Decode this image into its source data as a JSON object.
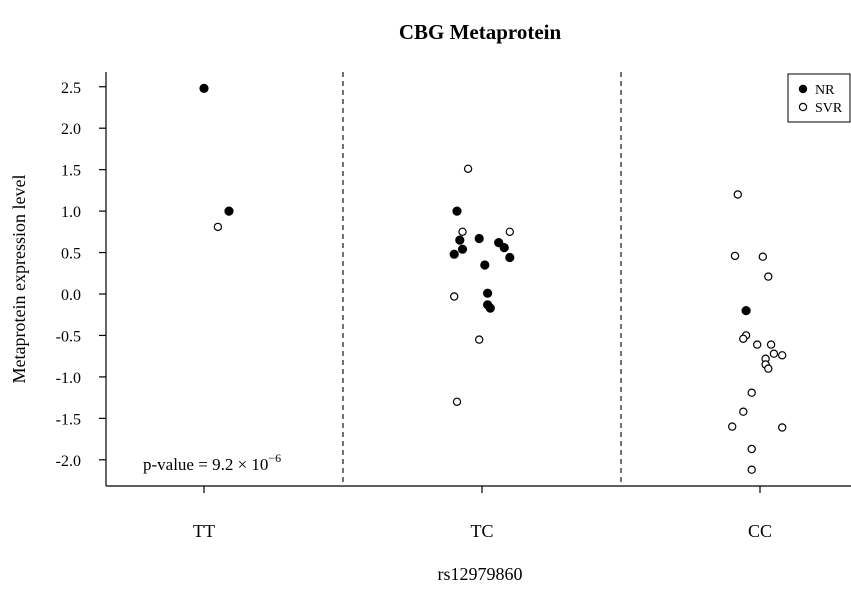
{
  "chart_data": {
    "type": "scatter",
    "title": "CBG Metaprotein",
    "xlabel": "rs12979860",
    "ylabel": "Metaprotein expression level",
    "categories": [
      "TT",
      "TC",
      "CC"
    ],
    "ylim": [
      -2.3,
      2.7
    ],
    "yticks": [
      "2.5",
      "2.0",
      "1.5",
      "1.0",
      "0.5",
      "0.0",
      "-0.5",
      "-1.0",
      "-1.5",
      "-2.0"
    ],
    "yticks_values": [
      2.5,
      2.0,
      1.5,
      1.0,
      0.5,
      0.0,
      -0.5,
      -1.0,
      -1.5,
      -2.0
    ],
    "grid": false,
    "legend_position": "top-right",
    "separators": "dashed vertical lines between groups",
    "annotation": {
      "text": "p-value = 9.2 × 10",
      "exponent": "−6"
    },
    "series": [
      {
        "name": "NR",
        "marker": "filled-circle",
        "points": [
          {
            "x": "TT",
            "jitter": 0.0,
            "y": 2.48
          },
          {
            "x": "TT",
            "jitter": 0.09,
            "y": 1.0
          },
          {
            "x": "TC",
            "jitter": -0.09,
            "y": 1.0
          },
          {
            "x": "TC",
            "jitter": -0.08,
            "y": 0.65
          },
          {
            "x": "TC",
            "jitter": -0.07,
            "y": 0.54
          },
          {
            "x": "TC",
            "jitter": -0.1,
            "y": 0.48
          },
          {
            "x": "TC",
            "jitter": -0.01,
            "y": 0.67
          },
          {
            "x": "TC",
            "jitter": 0.06,
            "y": 0.62
          },
          {
            "x": "TC",
            "jitter": 0.08,
            "y": 0.56
          },
          {
            "x": "TC",
            "jitter": 0.1,
            "y": 0.44
          },
          {
            "x": "TC",
            "jitter": 0.01,
            "y": 0.35
          },
          {
            "x": "TC",
            "jitter": 0.02,
            "y": 0.01
          },
          {
            "x": "TC",
            "jitter": 0.02,
            "y": -0.13
          },
          {
            "x": "TC",
            "jitter": 0.03,
            "y": -0.17
          },
          {
            "x": "CC",
            "jitter": -0.05,
            "y": -0.2
          }
        ]
      },
      {
        "name": "SVR",
        "marker": "open-circle",
        "points": [
          {
            "x": "TT",
            "jitter": 0.05,
            "y": 0.81
          },
          {
            "x": "TC",
            "jitter": -0.05,
            "y": 1.51
          },
          {
            "x": "TC",
            "jitter": -0.07,
            "y": 0.75
          },
          {
            "x": "TC",
            "jitter": 0.1,
            "y": 0.75
          },
          {
            "x": "TC",
            "jitter": -0.1,
            "y": -0.03
          },
          {
            "x": "TC",
            "jitter": -0.01,
            "y": -0.55
          },
          {
            "x": "TC",
            "jitter": -0.09,
            "y": -1.3
          },
          {
            "x": "CC",
            "jitter": -0.08,
            "y": 1.2
          },
          {
            "x": "CC",
            "jitter": -0.09,
            "y": 0.46
          },
          {
            "x": "CC",
            "jitter": 0.01,
            "y": 0.45
          },
          {
            "x": "CC",
            "jitter": 0.03,
            "y": 0.21
          },
          {
            "x": "CC",
            "jitter": -0.05,
            "y": -0.5
          },
          {
            "x": "CC",
            "jitter": -0.06,
            "y": -0.54
          },
          {
            "x": "CC",
            "jitter": -0.01,
            "y": -0.61
          },
          {
            "x": "CC",
            "jitter": 0.04,
            "y": -0.61
          },
          {
            "x": "CC",
            "jitter": 0.05,
            "y": -0.72
          },
          {
            "x": "CC",
            "jitter": 0.02,
            "y": -0.78
          },
          {
            "x": "CC",
            "jitter": 0.08,
            "y": -0.74
          },
          {
            "x": "CC",
            "jitter": 0.02,
            "y": -0.85
          },
          {
            "x": "CC",
            "jitter": 0.03,
            "y": -0.9
          },
          {
            "x": "CC",
            "jitter": -0.03,
            "y": -1.19
          },
          {
            "x": "CC",
            "jitter": -0.06,
            "y": -1.42
          },
          {
            "x": "CC",
            "jitter": -0.1,
            "y": -1.6
          },
          {
            "x": "CC",
            "jitter": 0.08,
            "y": -1.61
          },
          {
            "x": "CC",
            "jitter": -0.03,
            "y": -1.87
          },
          {
            "x": "CC",
            "jitter": -0.03,
            "y": -2.12
          }
        ]
      }
    ]
  }
}
